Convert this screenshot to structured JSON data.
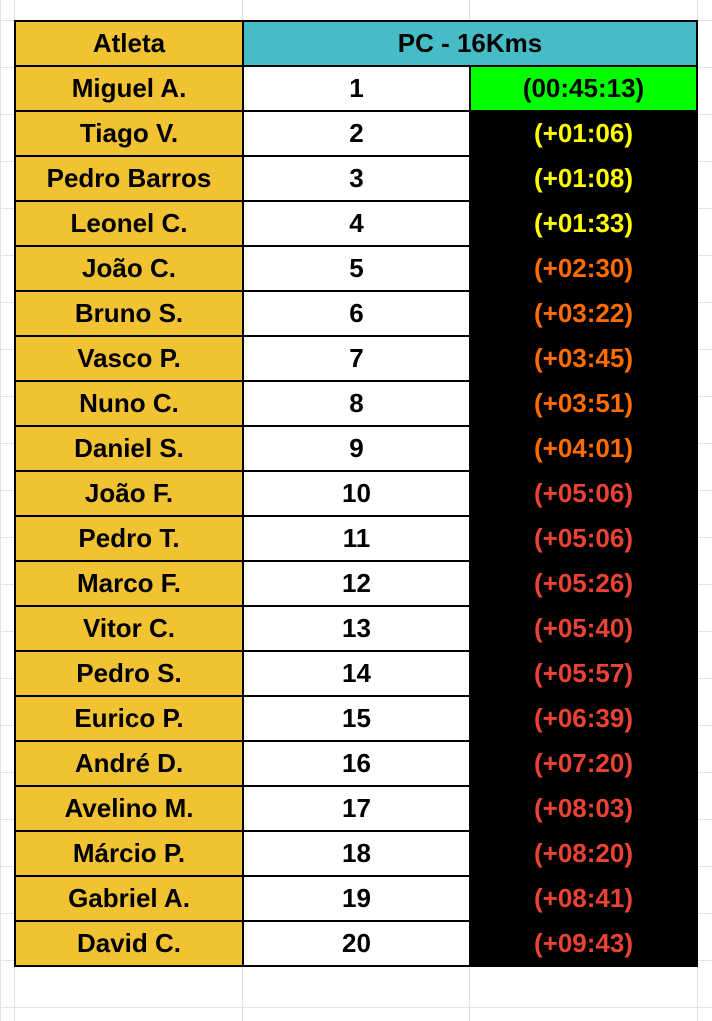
{
  "header": {
    "athlete": "Atleta",
    "event": "PC - 16Kms"
  },
  "colors": {
    "header_bg": "#46bdc6",
    "name_bg": "#f1c232",
    "winner_bg": "#00ff00",
    "time_bg": "#000000",
    "top": "#ffff00",
    "mid": "#ff6d01",
    "low": "#ea4335"
  },
  "rows": [
    {
      "name": "Miguel A.",
      "pos": "1",
      "time": "(00:45:13)",
      "tier": "winner"
    },
    {
      "name": "Tiago V.",
      "pos": "2",
      "time": "(+01:06)",
      "tier": "top"
    },
    {
      "name": "Pedro Barros",
      "pos": "3",
      "time": "(+01:08)",
      "tier": "top"
    },
    {
      "name": "Leonel C.",
      "pos": "4",
      "time": "(+01:33)",
      "tier": "top"
    },
    {
      "name": "João C.",
      "pos": "5",
      "time": "(+02:30)",
      "tier": "mid"
    },
    {
      "name": "Bruno S.",
      "pos": "6",
      "time": "(+03:22)",
      "tier": "mid"
    },
    {
      "name": "Vasco P.",
      "pos": "7",
      "time": "(+03:45)",
      "tier": "mid"
    },
    {
      "name": "Nuno C.",
      "pos": "8",
      "time": "(+03:51)",
      "tier": "mid"
    },
    {
      "name": "Daniel S.",
      "pos": "9",
      "time": "(+04:01)",
      "tier": "mid"
    },
    {
      "name": "João F.",
      "pos": "10",
      "time": "(+05:06)",
      "tier": "low"
    },
    {
      "name": "Pedro T.",
      "pos": "11",
      "time": "(+05:06)",
      "tier": "low"
    },
    {
      "name": "Marco F.",
      "pos": "12",
      "time": "(+05:26)",
      "tier": "low"
    },
    {
      "name": "Vitor C.",
      "pos": "13",
      "time": "(+05:40)",
      "tier": "low"
    },
    {
      "name": "Pedro S.",
      "pos": "14",
      "time": "(+05:57)",
      "tier": "low"
    },
    {
      "name": "Eurico P.",
      "pos": "15",
      "time": "(+06:39)",
      "tier": "low"
    },
    {
      "name": "André D.",
      "pos": "16",
      "time": "(+07:20)",
      "tier": "low"
    },
    {
      "name": "Avelino M.",
      "pos": "17",
      "time": "(+08:03)",
      "tier": "low"
    },
    {
      "name": "Márcio P.",
      "pos": "18",
      "time": "(+08:20)",
      "tier": "low"
    },
    {
      "name": "Gabriel A.",
      "pos": "19",
      "time": "(+08:41)",
      "tier": "low"
    },
    {
      "name": "David C.",
      "pos": "20",
      "time": "(+09:43)",
      "tier": "low"
    }
  ]
}
